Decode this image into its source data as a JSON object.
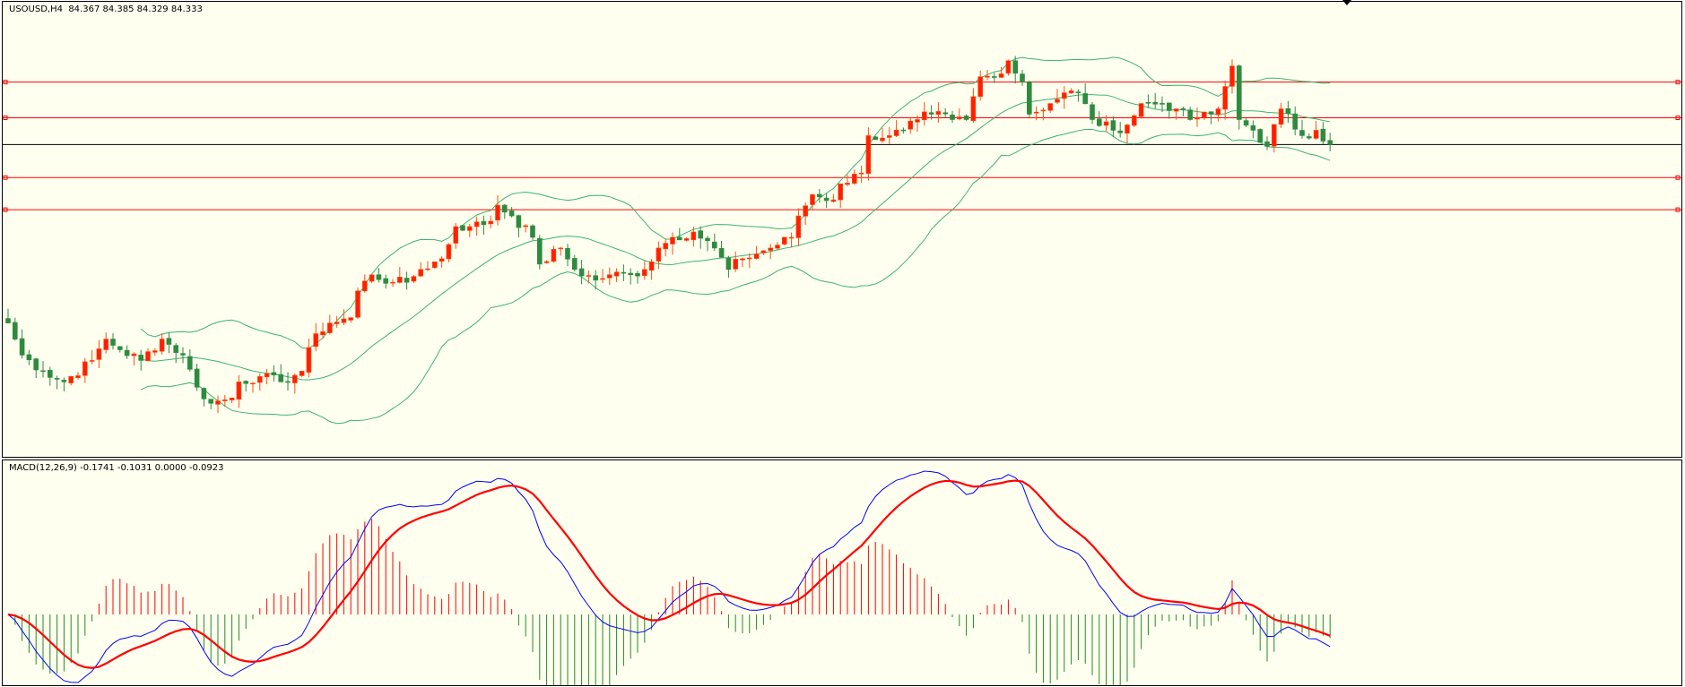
{
  "header": {
    "symbol_info": "USOUSD,H4  84.367 84.385 84.329 84.333"
  },
  "macd": {
    "label": "MACD(12,26,9) -0.1741 -0.1031 0.0000 -0.0923",
    "fast": 12,
    "slow": 26,
    "signal": 9
  },
  "colors": {
    "background": "#fffff0",
    "bull": "#ff2000",
    "bull_border": "#ff5010",
    "bear": "#2e8b3e",
    "bands": "#3cb371",
    "level": "#ff0000",
    "current": "#000000",
    "macd_fast": "#0000ff",
    "macd_slow": "#ff0000",
    "hist_up": "#ff0000",
    "hist_down": "#228b22"
  },
  "chart_data": {
    "type": "candlestick",
    "bars": 190,
    "last_close": 84.333,
    "price_range": [
      80.833,
      85.933
    ],
    "levels": [
      85.033,
      84.633,
      83.963,
      83.603
    ],
    "current_price": 84.333,
    "bollinger": {
      "period": 20,
      "deviation": 2
    },
    "close_path": [
      [
        0,
        82.333
      ],
      [
        2,
        81.973
      ],
      [
        5,
        81.793
      ],
      [
        8,
        81.673
      ],
      [
        12,
        81.913
      ],
      [
        14,
        82.153
      ],
      [
        16,
        82.033
      ],
      [
        19,
        81.913
      ],
      [
        22,
        82.153
      ],
      [
        25,
        81.973
      ],
      [
        27,
        81.613
      ],
      [
        29,
        81.433
      ],
      [
        32,
        81.493
      ],
      [
        33,
        81.673
      ],
      [
        36,
        81.733
      ],
      [
        39,
        81.673
      ],
      [
        42,
        81.793
      ],
      [
        44,
        82.213
      ],
      [
        46,
        82.333
      ],
      [
        49,
        82.393
      ],
      [
        50,
        82.693
      ],
      [
        52,
        82.873
      ],
      [
        55,
        82.789
      ],
      [
        57,
        82.789
      ],
      [
        59,
        82.933
      ],
      [
        62,
        83.053
      ],
      [
        64,
        83.413
      ],
      [
        66,
        83.413
      ],
      [
        69,
        83.473
      ],
      [
        70,
        83.653
      ],
      [
        72,
        83.533
      ],
      [
        75,
        83.293
      ],
      [
        76,
        82.993
      ],
      [
        79,
        83.173
      ],
      [
        81,
        82.933
      ],
      [
        84,
        82.813
      ],
      [
        86,
        82.873
      ],
      [
        89,
        82.873
      ],
      [
        91,
        82.933
      ],
      [
        93,
        83.173
      ],
      [
        95,
        83.293
      ],
      [
        98,
        83.353
      ],
      [
        101,
        83.173
      ],
      [
        103,
        82.933
      ],
      [
        105,
        83.053
      ],
      [
        109,
        83.173
      ],
      [
        112,
        83.293
      ],
      [
        113,
        83.533
      ],
      [
        115,
        83.773
      ],
      [
        118,
        83.713
      ],
      [
        119,
        83.893
      ],
      [
        122,
        84.013
      ],
      [
        123,
        84.433
      ],
      [
        126,
        84.433
      ],
      [
        128,
        84.493
      ],
      [
        130,
        84.613
      ],
      [
        132,
        84.673
      ],
      [
        135,
        84.613
      ],
      [
        137,
        84.613
      ],
      [
        139,
        85.093
      ],
      [
        141,
        85.093
      ],
      [
        143,
        85.273
      ],
      [
        145,
        85.033
      ],
      [
        146,
        84.673
      ],
      [
        149,
        84.793
      ],
      [
        151,
        84.913
      ],
      [
        153,
        84.913
      ],
      [
        155,
        84.613
      ],
      [
        158,
        84.493
      ],
      [
        160,
        84.553
      ],
      [
        162,
        84.793
      ],
      [
        165,
        84.793
      ],
      [
        167,
        84.733
      ],
      [
        169,
        84.613
      ],
      [
        172,
        84.673
      ],
      [
        173,
        84.733
      ],
      [
        175,
        85.213
      ],
      [
        176,
        84.613
      ],
      [
        178,
        84.493
      ],
      [
        180,
        84.313
      ],
      [
        182,
        84.733
      ],
      [
        185,
        84.433
      ],
      [
        187,
        84.493
      ],
      [
        189,
        84.333
      ]
    ]
  }
}
